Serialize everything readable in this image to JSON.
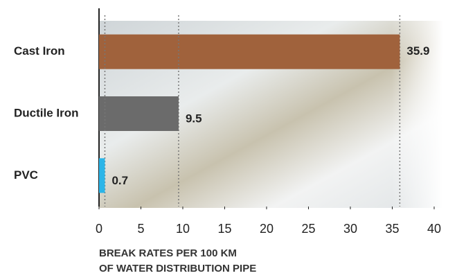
{
  "chart_data": {
    "type": "bar",
    "orientation": "horizontal",
    "categories": [
      "Cast Iron",
      "Ductile Iron",
      "PVC"
    ],
    "values": [
      35.9,
      9.5,
      0.7
    ],
    "colors": [
      "#a0623c",
      "#6b6b6b",
      "#2bb5e8"
    ],
    "xlim": [
      0,
      40
    ],
    "xticks": [
      0,
      5,
      10,
      15,
      20,
      25,
      30,
      35,
      40
    ],
    "xlabel": [
      "BREAK RATES PER 100 KM",
      "OF WATER DISTRIBUTION PIPE"
    ]
  }
}
